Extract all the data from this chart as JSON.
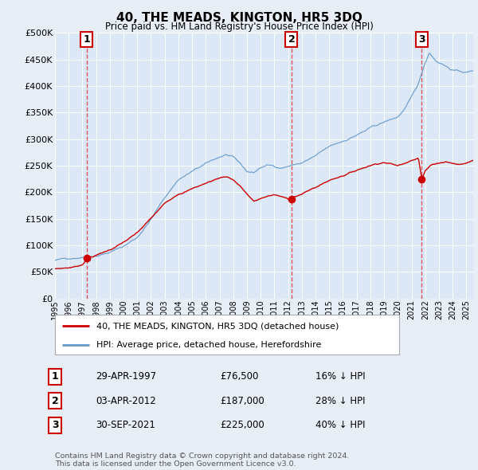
{
  "title": "40, THE MEADS, KINGTON, HR5 3DQ",
  "subtitle": "Price paid vs. HM Land Registry's House Price Index (HPI)",
  "background_color": "#e8eef5",
  "plot_bg_color": "#dce8f5",
  "ylim": [
    0,
    500000
  ],
  "yticks": [
    0,
    50000,
    100000,
    150000,
    200000,
    250000,
    300000,
    350000,
    400000,
    450000,
    500000
  ],
  "xlim_start": 1995.0,
  "xlim_end": 2025.5,
  "legend_label_red": "40, THE MEADS, KINGTON, HR5 3DQ (detached house)",
  "legend_label_blue": "HPI: Average price, detached house, Herefordshire",
  "sale_dates": [
    1997.32,
    2012.25,
    2021.75
  ],
  "sale_prices": [
    76500,
    187000,
    225000
  ],
  "sale_labels": [
    "1",
    "2",
    "3"
  ],
  "sale_info": [
    {
      "num": "1",
      "date": "29-APR-1997",
      "price": "£76,500",
      "pct": "16% ↓ HPI"
    },
    {
      "num": "2",
      "date": "03-APR-2012",
      "price": "£187,000",
      "pct": "28% ↓ HPI"
    },
    {
      "num": "3",
      "date": "30-SEP-2021",
      "price": "£225,000",
      "pct": "40% ↓ HPI"
    }
  ],
  "footer": "Contains HM Land Registry data © Crown copyright and database right 2024.\nThis data is licensed under the Open Government Licence v3.0.",
  "red_color": "#cc0000",
  "blue_color": "#6699cc",
  "dashed_color": "#dd3333"
}
